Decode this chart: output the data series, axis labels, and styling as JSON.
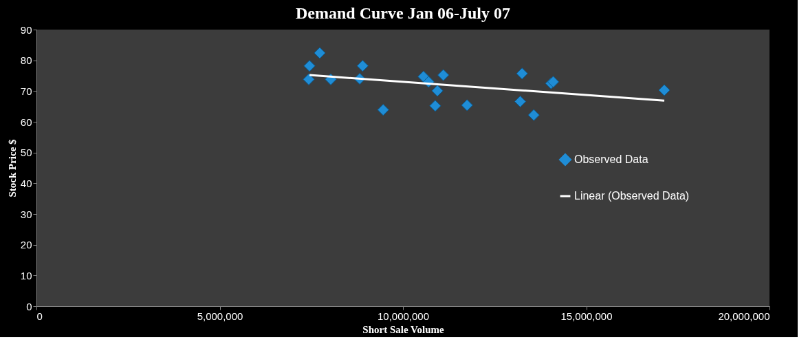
{
  "chart_data": {
    "type": "scatter",
    "title": "Demand Curve Jan 06-July 07",
    "xlabel": "Short Sale Volume",
    "ylabel": "Stock Price $",
    "xlim": [
      0,
      20000000
    ],
    "xticks": [
      0,
      {
        "value": 5000000,
        "label": "5,000,000"
      },
      {
        "value": 10000000,
        "label": "10,000,000"
      },
      {
        "value": 15000000,
        "label": "15,000,000"
      },
      {
        "value": 20000000,
        "label": "20,000,000"
      }
    ],
    "ylim": [
      0,
      90
    ],
    "yticks": [
      0,
      10,
      20,
      30,
      40,
      50,
      60,
      70,
      80,
      90
    ],
    "grid": false,
    "legend": "right",
    "series": [
      {
        "name": "Observed Data",
        "marker": "diamond",
        "color": "#1f8dd6",
        "x": [
          7450000,
          7430000,
          7730000,
          8030000,
          8900000,
          8820000,
          9460000,
          10560000,
          10700000,
          11100000,
          10940000,
          10880000,
          11750000,
          13250000,
          13200000,
          13570000,
          14040000,
          14100000,
          17130000
        ],
        "values": [
          78.2,
          73.8,
          82.4,
          73.8,
          78.2,
          74.0,
          63.9,
          74.7,
          73.0,
          75.2,
          70.1,
          65.2,
          65.4,
          75.7,
          66.6,
          62.2,
          72.5,
          73.0,
          70.3
        ]
      },
      {
        "name": "Linear (Observed Data)",
        "type": "line",
        "color": "#ffffff",
        "line_style": "solid",
        "x": [
          7450000,
          17130000
        ],
        "values": [
          75.2,
          66.9
        ]
      }
    ]
  }
}
